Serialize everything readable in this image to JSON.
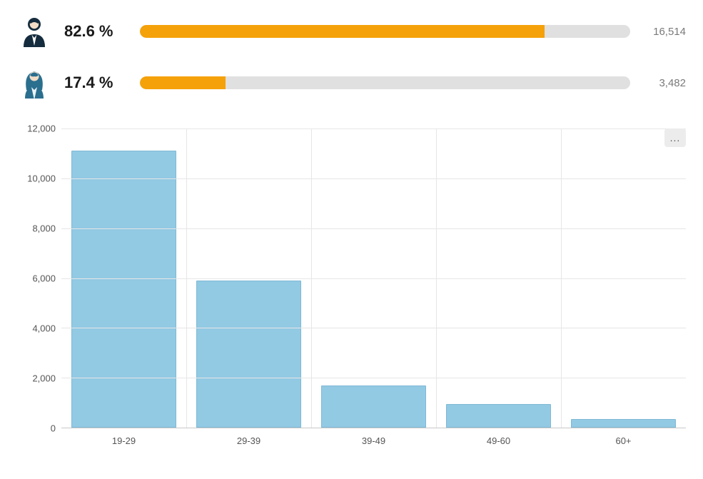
{
  "gender_stats": {
    "track_color": "#e0e0e0",
    "fill_color": "#f5a10a",
    "male": {
      "icon_color": "#152c3e",
      "percent_label": "82.6 %",
      "percent": 82.6,
      "count_label": "16,514"
    },
    "female": {
      "icon_color": "#2b6f8f",
      "percent_label": "17.4 %",
      "percent": 17.4,
      "count_label": "3,482"
    }
  },
  "age_chart": {
    "type": "bar",
    "categories": [
      "19-29",
      "29-39",
      "39-49",
      "49-60",
      "60+"
    ],
    "values": [
      11100,
      5900,
      1700,
      950,
      340
    ],
    "ylim_max": 12000,
    "y_ticks": [
      0,
      2000,
      4000,
      6000,
      8000,
      10000,
      12000
    ],
    "y_tick_labels": [
      "0",
      "2,000",
      "4,000",
      "6,000",
      "8,000",
      "10,000",
      "12,000"
    ],
    "bar_color": "#92c9e3",
    "bar_border_color": "#7fb9d6",
    "grid_color": "#e6e6e6",
    "axis_color": "#c9c9c9",
    "label_color": "#555555",
    "label_fontsize": 13,
    "background_color": "#ffffff",
    "menu_label": "..."
  }
}
